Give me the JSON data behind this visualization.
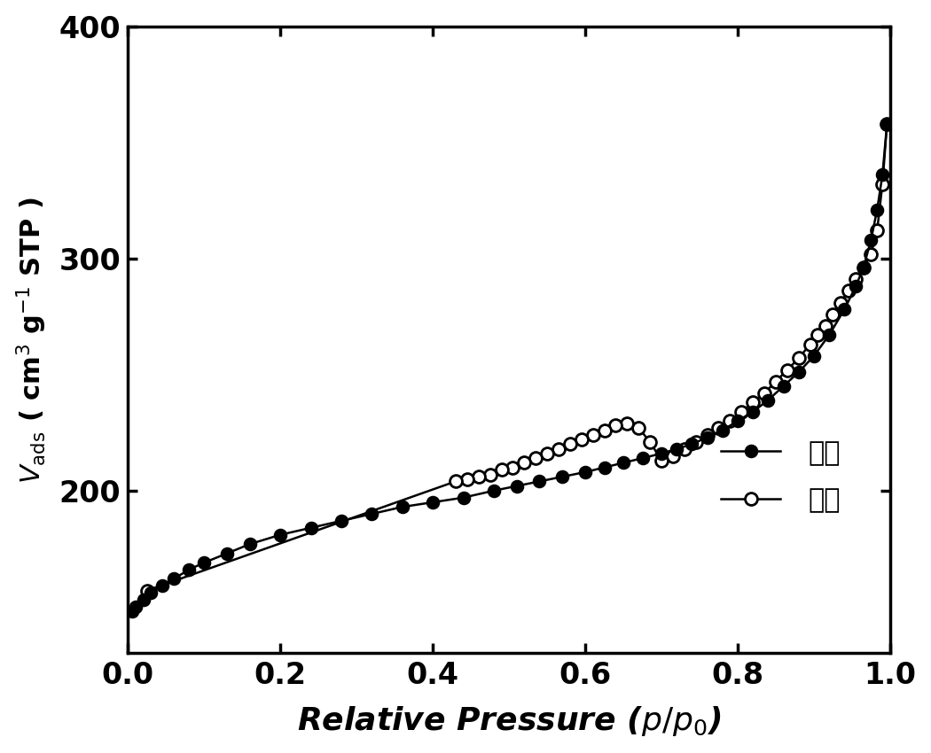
{
  "adsorption_x": [
    0.005,
    0.01,
    0.02,
    0.03,
    0.045,
    0.06,
    0.08,
    0.1,
    0.13,
    0.16,
    0.2,
    0.24,
    0.28,
    0.32,
    0.36,
    0.4,
    0.44,
    0.48,
    0.51,
    0.54,
    0.57,
    0.6,
    0.625,
    0.65,
    0.675,
    0.7,
    0.72,
    0.74,
    0.76,
    0.78,
    0.8,
    0.82,
    0.84,
    0.86,
    0.88,
    0.9,
    0.92,
    0.94,
    0.955,
    0.965,
    0.975,
    0.983,
    0.99,
    0.996
  ],
  "adsorption_y": [
    148,
    150,
    153,
    156,
    159,
    162,
    166,
    169,
    173,
    177,
    181,
    184,
    187,
    190,
    193,
    195,
    197,
    200,
    202,
    204,
    206,
    208,
    210,
    212,
    214,
    216,
    218,
    220,
    223,
    226,
    230,
    234,
    239,
    245,
    251,
    258,
    267,
    278,
    288,
    296,
    308,
    321,
    336,
    358
  ],
  "desorption_x": [
    0.996,
    0.99,
    0.983,
    0.975,
    0.965,
    0.955,
    0.945,
    0.935,
    0.925,
    0.915,
    0.905,
    0.895,
    0.88,
    0.865,
    0.85,
    0.835,
    0.82,
    0.805,
    0.79,
    0.775,
    0.76,
    0.745,
    0.73,
    0.715,
    0.7,
    0.685,
    0.67,
    0.655,
    0.64,
    0.625,
    0.61,
    0.595,
    0.58,
    0.565,
    0.55,
    0.535,
    0.52,
    0.505,
    0.49,
    0.475,
    0.46,
    0.445,
    0.43,
    0.025
  ],
  "desorption_y": [
    358,
    332,
    312,
    302,
    296,
    291,
    286,
    281,
    276,
    271,
    267,
    263,
    257,
    252,
    247,
    242,
    238,
    234,
    230,
    227,
    224,
    221,
    218,
    215,
    213,
    221,
    227,
    229,
    228,
    226,
    224,
    222,
    220,
    218,
    216,
    214,
    212,
    210,
    209,
    207,
    206,
    205,
    204,
    157
  ],
  "xlim": [
    0.0,
    1.0
  ],
  "ylim": [
    130,
    400
  ],
  "yticks": [
    200,
    300,
    400
  ],
  "xticks": [
    0.0,
    0.2,
    0.4,
    0.6,
    0.8,
    1.0
  ],
  "xlabel": "Relative Pressure ($p/p_0$)",
  "ylabel": "$V_{\\mathrm{ads}}$ ( cm$^3$ g$^{-1}$ STP )",
  "legend_adsorption": "吸附",
  "legend_desorption": "脱附",
  "background_color": "#ffffff",
  "line_color": "#000000"
}
